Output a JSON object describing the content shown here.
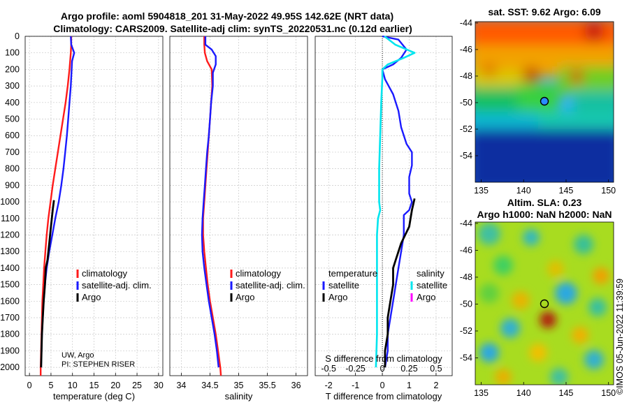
{
  "title": {
    "line1": "Argo profile: aoml 5904818_201 31-May-2022 49.95S 142.62E (NRT data)",
    "line2": "Climatology: CARS2009. Satellite-adj clim: synTS_20220531.nc (0.12d earlier)"
  },
  "colors": {
    "climatology": "#ff1a1a",
    "satellite": "#1a1aff",
    "argo": "#000000",
    "temp_diff": "#1a1aff",
    "sal_diff": "#00e5ee",
    "argo_sal_marker": "#ff00ff"
  },
  "chart_data": [
    {
      "id": "temperature",
      "type": "line",
      "xlabel": "temperature (deg C)",
      "xlim": [
        -1,
        31
      ],
      "ylim": [
        0,
        2050
      ],
      "y_reversed": true,
      "xticks": [
        0,
        5,
        10,
        15,
        20,
        25,
        30
      ],
      "yticks": [
        0,
        100,
        200,
        300,
        400,
        500,
        600,
        700,
        800,
        900,
        1000,
        1100,
        1200,
        1300,
        1400,
        1500,
        1600,
        1700,
        1800,
        1900,
        2000
      ],
      "legend": [
        "climatology",
        "satellite-adj. clim.",
        "Argo"
      ],
      "note": [
        "UW, Argo",
        "PI: STEPHEN RISER"
      ],
      "series": [
        {
          "name": "climatology",
          "points": [
            [
              9.7,
              0
            ],
            [
              9.7,
              50
            ],
            [
              9.6,
              100
            ],
            [
              9.3,
              200
            ],
            [
              8.9,
              300
            ],
            [
              8.4,
              400
            ],
            [
              7.8,
              500
            ],
            [
              7.2,
              600
            ],
            [
              6.6,
              700
            ],
            [
              6.0,
              800
            ],
            [
              5.4,
              900
            ],
            [
              4.9,
              1000
            ],
            [
              4.4,
              1100
            ],
            [
              4.0,
              1200
            ],
            [
              3.7,
              1300
            ],
            [
              3.4,
              1400
            ],
            [
              3.2,
              1500
            ],
            [
              3.0,
              1600
            ],
            [
              2.9,
              1700
            ],
            [
              2.8,
              1800
            ],
            [
              2.7,
              1900
            ],
            [
              2.6,
              2000
            ],
            [
              2.6,
              2050
            ]
          ]
        },
        {
          "name": "satellite-adj. clim.",
          "points": [
            [
              9.6,
              0
            ],
            [
              9.7,
              50
            ],
            [
              10.4,
              100
            ],
            [
              9.9,
              150
            ],
            [
              9.8,
              200
            ],
            [
              9.6,
              300
            ],
            [
              9.3,
              400
            ],
            [
              9.0,
              500
            ],
            [
              8.7,
              600
            ],
            [
              8.3,
              700
            ],
            [
              7.9,
              800
            ],
            [
              7.4,
              900
            ],
            [
              6.8,
              1000
            ],
            [
              6.0,
              1100
            ],
            [
              5.3,
              1200
            ],
            [
              4.6,
              1300
            ],
            [
              4.0,
              1400
            ],
            [
              3.6,
              1500
            ],
            [
              3.3,
              1600
            ],
            [
              3.1,
              1700
            ],
            [
              2.9,
              1800
            ],
            [
              2.8,
              1900
            ],
            [
              2.7,
              2000
            ]
          ]
        },
        {
          "name": "Argo",
          "points": [
            [
              5.7,
              990
            ],
            [
              5.4,
              1050
            ],
            [
              5.0,
              1150
            ],
            [
              4.6,
              1250
            ],
            [
              4.2,
              1350
            ],
            [
              3.8,
              1400
            ],
            [
              3.6,
              1500
            ],
            [
              3.3,
              1600
            ],
            [
              3.1,
              1700
            ],
            [
              2.9,
              1800
            ],
            [
              2.8,
              1900
            ],
            [
              2.7,
              2000
            ]
          ]
        }
      ]
    },
    {
      "id": "salinity",
      "type": "line",
      "xlabel": "salinity",
      "xlim": [
        33.8,
        36.2
      ],
      "ylim": [
        0,
        2050
      ],
      "y_reversed": true,
      "xticks": [
        34,
        34.5,
        35,
        35.5,
        36
      ],
      "legend": [
        "climatology",
        "satellite-adj. clim.",
        "Argo"
      ],
      "series": [
        {
          "name": "climatology",
          "points": [
            [
              34.4,
              0
            ],
            [
              34.4,
              50
            ],
            [
              34.41,
              100
            ],
            [
              34.45,
              150
            ],
            [
              34.53,
              200
            ],
            [
              34.54,
              300
            ],
            [
              34.52,
              400
            ],
            [
              34.5,
              500
            ],
            [
              34.48,
              600
            ],
            [
              34.46,
              700
            ],
            [
              34.44,
              800
            ],
            [
              34.42,
              900
            ],
            [
              34.4,
              1000
            ],
            [
              34.38,
              1100
            ],
            [
              34.38,
              1200
            ],
            [
              34.4,
              1300
            ],
            [
              34.43,
              1400
            ],
            [
              34.46,
              1500
            ],
            [
              34.5,
              1600
            ],
            [
              34.55,
              1700
            ],
            [
              34.6,
              1800
            ],
            [
              34.64,
              1900
            ],
            [
              34.68,
              2000
            ],
            [
              34.69,
              2050
            ]
          ]
        },
        {
          "name": "satellite-adj. clim.",
          "points": [
            [
              34.42,
              0
            ],
            [
              34.42,
              50
            ],
            [
              34.53,
              80
            ],
            [
              34.6,
              120
            ],
            [
              34.6,
              170
            ],
            [
              34.55,
              220
            ],
            [
              34.55,
              300
            ],
            [
              34.52,
              400
            ],
            [
              34.5,
              500
            ],
            [
              34.48,
              600
            ],
            [
              34.45,
              700
            ],
            [
              34.43,
              800
            ],
            [
              34.41,
              900
            ],
            [
              34.39,
              1000
            ],
            [
              34.37,
              1100
            ],
            [
              34.36,
              1200
            ],
            [
              34.37,
              1300
            ],
            [
              34.4,
              1400
            ],
            [
              34.44,
              1500
            ],
            [
              34.48,
              1600
            ],
            [
              34.53,
              1700
            ],
            [
              34.58,
              1800
            ],
            [
              34.62,
              1900
            ],
            [
              34.65,
              2000
            ]
          ]
        }
      ]
    },
    {
      "id": "difference",
      "type": "line",
      "xlabel": "T difference from climatology",
      "xlabel_top": "S difference from climatology",
      "xlim": [
        -2.5,
        2.6
      ],
      "s_xlim": [
        -0.625,
        0.65
      ],
      "ylim": [
        0,
        2050
      ],
      "y_reversed": true,
      "xticks": [
        -2,
        -1,
        0,
        1,
        2
      ],
      "s_ticks": [
        -0.5,
        -0.25,
        0,
        0.25,
        0.5
      ],
      "s_tick_labels": [
        "-0.5",
        "-0.25",
        "0",
        "0.25",
        "0.5"
      ],
      "legend_left": {
        "heading": "temperature",
        "items": [
          "satellite",
          "Argo"
        ]
      },
      "legend_right": {
        "heading": "salinity",
        "items": [
          "satellite",
          "Argo"
        ]
      },
      "series": [
        {
          "name": "temperature satellite",
          "points": [
            [
              0.0,
              0
            ],
            [
              0.6,
              20
            ],
            [
              0.9,
              80
            ],
            [
              0.7,
              130
            ],
            [
              0.4,
              170
            ],
            [
              0,
              200
            ],
            [
              0.1,
              260
            ],
            [
              0.4,
              350
            ],
            [
              0.6,
              450
            ],
            [
              0.7,
              550
            ],
            [
              0.9,
              650
            ],
            [
              1.1,
              700
            ],
            [
              1.1,
              780
            ],
            [
              1.0,
              850
            ],
            [
              1.0,
              950
            ],
            [
              1.1,
              1000
            ],
            [
              1.0,
              1050
            ],
            [
              0.8,
              1080
            ],
            [
              0.8,
              1200
            ],
            [
              0.7,
              1300
            ],
            [
              0.6,
              1400
            ],
            [
              0.5,
              1500
            ],
            [
              0.4,
              1600
            ],
            [
              0.3,
              1700
            ],
            [
              0.2,
              1800
            ],
            [
              0.2,
              1900
            ],
            [
              0.1,
              2000
            ]
          ]
        },
        {
          "name": "temperature Argo",
          "points": [
            [
              1.2,
              980
            ],
            [
              1.1,
              1050
            ],
            [
              1.0,
              1150
            ],
            [
              0.7,
              1250
            ],
            [
              0.5,
              1350
            ],
            [
              0.4,
              1400
            ],
            [
              0.4,
              1500
            ],
            [
              0.3,
              1600
            ],
            [
              0.2,
              1700
            ],
            [
              0.2,
              1800
            ],
            [
              0.1,
              1900
            ],
            [
              0.1,
              2000
            ]
          ]
        },
        {
          "name": "salinity satellite",
          "points": [
            [
              0.02,
              0
            ],
            [
              0.12,
              50
            ],
            [
              0.3,
              100
            ],
            [
              0.2,
              130
            ],
            [
              0.05,
              170
            ],
            [
              0.0,
              200
            ],
            [
              0.0,
              250
            ],
            [
              -0.01,
              400
            ],
            [
              -0.02,
              600
            ],
            [
              -0.03,
              800
            ],
            [
              -0.03,
              1000
            ],
            [
              -0.02,
              1050
            ],
            [
              -0.04,
              1100
            ],
            [
              -0.05,
              1200
            ],
            [
              -0.05,
              1400
            ],
            [
              -0.05,
              1600
            ],
            [
              -0.05,
              1800
            ],
            [
              -0.06,
              2000
            ]
          ]
        }
      ]
    },
    {
      "id": "sst_map",
      "type": "heatmap",
      "title": "sat. SST: 9.62 Argo: 6.09",
      "xticks": [
        135,
        140,
        145,
        150
      ],
      "yticks": [
        -44,
        -46,
        -48,
        -50,
        -52,
        -54
      ],
      "marker": {
        "lon": 142.62,
        "lat": -49.95
      }
    },
    {
      "id": "sla_map",
      "type": "heatmap",
      "title": "Altim. SLA: 0.23",
      "subtitle": "Argo h1000: NaN h2000: NaN",
      "xticks": [
        135,
        140,
        145,
        150
      ],
      "yticks": [
        -44,
        -46,
        -48,
        -50,
        -52,
        -54
      ],
      "marker": {
        "lon": 142.62,
        "lat": -49.95
      }
    }
  ],
  "timestamp": "©IMOS 05-Jun-2022 11:39:59"
}
